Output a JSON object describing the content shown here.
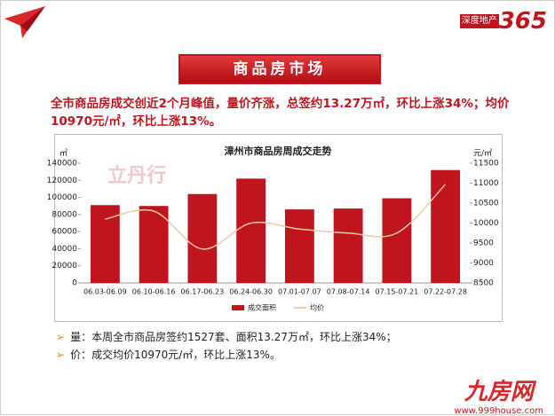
{
  "logo": {
    "text": "深度地产",
    "number": "365"
  },
  "banner": "商品房市场",
  "headline": "全市商品房成交创近2个月峰值，量价齐涨，总签约13.27万㎡，环比上涨34%；均价10970元/㎡，环比上涨13%。",
  "watermark": "立丹行",
  "bullets": [
    "量：本周全市商品房签约1527套、面积13.27万㎡，环比上涨34%；",
    "价：成交均价10970元/㎡，环比上涨13%。"
  ],
  "footer": {
    "brand": "九房网",
    "url": "www.999house.com"
  },
  "chart_data": {
    "type": "bar",
    "title": "漳州市商品房周成交走势",
    "y_unit": "㎡",
    "y2_unit": "元/㎡",
    "categories": [
      "06.03-06.09",
      "06.10-06.16",
      "06.17-06.23",
      "06.24-06.30",
      "07.01-07.07",
      "07.08-07.14",
      "07.15-07.21",
      "07.22-07.28"
    ],
    "series": [
      {
        "name": "成交面积",
        "type": "bar",
        "color": "#c0141e",
        "values": [
          91000,
          90000,
          104000,
          122000,
          86000,
          87000,
          99000,
          132000
        ]
      },
      {
        "name": "均价",
        "type": "line",
        "axis": "y2",
        "color": "#f2c9a4",
        "values": [
          10100,
          10300,
          9350,
          10000,
          9850,
          9750,
          9750,
          10970
        ]
      }
    ],
    "ylim": [
      0,
      140000
    ],
    "yticks": [
      0,
      20000,
      40000,
      60000,
      80000,
      100000,
      120000,
      140000
    ],
    "y2lim": [
      8500,
      11500
    ],
    "y2ticks": [
      8500,
      9000,
      9500,
      10000,
      10500,
      11000,
      11500
    ],
    "legend": "bottom"
  }
}
